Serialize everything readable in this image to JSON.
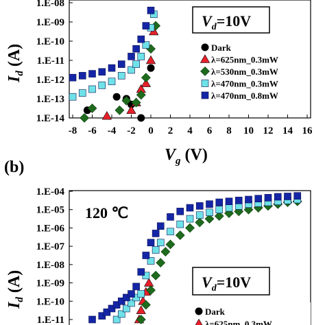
{
  "chart_data": [
    {
      "panel": "a",
      "type": "scatter",
      "xlabel": "V",
      "xlabel_sub": "g",
      "xlabel_unit": "(V)",
      "ylabel": "I",
      "ylabel_sub": "d",
      "ylabel_unit": "(A)",
      "x_ticks": [
        "-8",
        "-6",
        "-4",
        "-2",
        "0",
        "2",
        "4",
        "6",
        "8",
        "10",
        "12",
        "14",
        "16"
      ],
      "y_ticks": [
        "1.E-08",
        "1.E-09",
        "1.E-10",
        "1.E-11",
        "1.E-12",
        "1.E-13",
        "1.E-14"
      ],
      "xlim": [
        -8,
        16
      ],
      "ylim_log10": [
        -14,
        -8
      ],
      "annotation": {
        "prefix": "V",
        "sub": "d",
        "value": "=10V"
      },
      "series": [
        {
          "name": "Dark",
          "marker": "circle",
          "color": "#000000",
          "x": [
            -6.5,
            -3.5,
            -2.5,
            -2.0,
            -1.0,
            0.0
          ],
          "y_log10": [
            -13.6,
            -12.9,
            -13.0,
            -13.3,
            -14.0,
            -11.4
          ]
        },
        {
          "name": "λ=625nm_0.3mW",
          "marker": "triangle",
          "color": "#e8202a",
          "x": [
            -4.5,
            -2.0,
            -1.5,
            -1.0,
            -0.5,
            0.0,
            0.3
          ],
          "y_log10": [
            -13.9,
            -13.6,
            -13.2,
            -12.5,
            -12.2,
            -11.0,
            -9.5
          ]
        },
        {
          "name": "λ=530nm_0.3mW",
          "marker": "diamond",
          "color": "#1e6b1e",
          "x": [
            -6.8,
            -6.0,
            -3.2,
            -2.5,
            -1.5,
            -1.0,
            -0.5,
            0.0,
            0.5
          ],
          "y_log10": [
            -14.0,
            -13.5,
            -13.6,
            -13.1,
            -13.2,
            -12.8,
            -11.9,
            -10.4,
            -9.2
          ]
        },
        {
          "name": "λ=470nm_0.3mW",
          "marker": "square",
          "color": "#6fe2e8",
          "x": [
            -8.0,
            -7.0,
            -6.0,
            -5.0,
            -4.0,
            -3.0,
            -2.0,
            -1.5,
            -1.0,
            -0.5,
            0.0,
            0.3
          ],
          "y_log10": [
            -12.9,
            -12.7,
            -12.5,
            -12.3,
            -12.1,
            -11.8,
            -11.5,
            -11.2,
            -10.8,
            -10.2,
            -9.3,
            -8.6
          ]
        },
        {
          "name": "λ=470nm_0.8mW",
          "marker": "square",
          "color": "#1426a6",
          "x": [
            -8.0,
            -7.0,
            -6.0,
            -5.0,
            -4.0,
            -3.0,
            -2.0,
            -1.5,
            -1.0,
            -0.5,
            0.0
          ],
          "y_log10": [
            -11.9,
            -11.8,
            -11.7,
            -11.6,
            -11.4,
            -11.2,
            -10.8,
            -10.4,
            -9.9,
            -9.2,
            -8.4
          ]
        }
      ]
    },
    {
      "panel": "b",
      "panel_label": "(b)",
      "type": "scatter",
      "ylabel": "I",
      "ylabel_sub": "d",
      "ylabel_unit": "(A)",
      "y_ticks": [
        "1.E-04",
        "1.E-05",
        "1.E-06",
        "1.E-07",
        "1.E-08",
        "1.E-09",
        "1.E-10",
        "1.E-11"
      ],
      "xlim": [
        -8,
        16
      ],
      "ylim_log10": [
        -11,
        -4
      ],
      "temperature_label": "120 ℃",
      "annotation": {
        "prefix": "V",
        "sub": "d",
        "value": "=10V"
      },
      "legend_visible": [
        "Dark",
        "λ=625nm_0.3mW"
      ],
      "series": [
        {
          "name": "Dark",
          "marker": "circle",
          "color": "#000000",
          "x": [],
          "y_log10": []
        },
        {
          "name": "λ=625nm_0.3mW",
          "marker": "triangle",
          "color": "#e8202a",
          "x": [
            -1.2,
            -1.0,
            -0.8,
            -0.5,
            -0.2
          ],
          "y_log10": [
            -11.0,
            -10.5,
            -10.0,
            -9.5,
            -9.0
          ]
        },
        {
          "name": "λ=530nm_0.3mW",
          "marker": "diamond",
          "color": "#1e6b1e",
          "x": [
            -1.0,
            -0.5,
            0.0,
            0.5,
            1.0,
            1.5,
            2.0,
            3.0,
            4.0,
            5.0,
            6.0,
            7.0,
            8.0,
            9.0,
            10.0,
            11.0,
            12.0,
            13.0,
            14.0,
            15.0
          ],
          "y_log10": [
            -11.0,
            -10.2,
            -9.4,
            -8.6,
            -7.9,
            -7.3,
            -6.9,
            -6.4,
            -6.0,
            -5.7,
            -5.5,
            -5.35,
            -5.2,
            -5.1,
            -5.0,
            -4.9,
            -4.8,
            -4.7,
            -4.6,
            -4.55
          ]
        },
        {
          "name": "λ=470nm_0.3mW",
          "marker": "square",
          "color": "#6fe2e8",
          "x": [
            -3.5,
            -3.0,
            -2.5,
            -2.0,
            -1.5,
            -1.0,
            -0.5,
            0.0,
            0.5,
            1.0,
            2.0,
            3.0,
            4.0,
            5.0,
            6.0,
            7.0,
            8.0,
            9.0,
            10.0,
            11.0,
            12.0,
            13.0,
            14.0,
            15.0
          ],
          "y_log10": [
            -11.0,
            -10.7,
            -10.4,
            -10.1,
            -9.8,
            -9.6,
            -8.6,
            -7.8,
            -7.2,
            -6.8,
            -6.2,
            -5.8,
            -5.5,
            -5.3,
            -5.15,
            -5.0,
            -4.9,
            -4.8,
            -4.7,
            -4.65,
            -4.6,
            -4.55,
            -4.5,
            -4.45
          ]
        },
        {
          "name": "λ=470nm_0.8mW",
          "marker": "square",
          "color": "#1426a6",
          "x": [
            -6.0,
            -5.0,
            -4.5,
            -4.0,
            -3.5,
            -3.0,
            -2.5,
            -2.0,
            -1.5,
            -1.0,
            -0.5,
            0.0,
            0.5,
            1.0,
            2.0,
            3.0,
            4.0,
            5.0,
            6.0,
            7.0,
            8.0,
            9.0,
            10.0,
            11.0,
            12.0,
            13.0,
            14.0,
            15.0
          ],
          "y_log10": [
            -11.0,
            -10.8,
            -10.6,
            -10.4,
            -10.2,
            -10.0,
            -9.8,
            -9.6,
            -9.2,
            -8.4,
            -7.5,
            -6.8,
            -6.3,
            -5.9,
            -5.4,
            -5.1,
            -4.9,
            -4.8,
            -4.7,
            -4.6,
            -4.55,
            -4.5,
            -4.45,
            -4.4,
            -4.35,
            -4.3,
            -4.28,
            -4.25
          ]
        }
      ]
    }
  ]
}
